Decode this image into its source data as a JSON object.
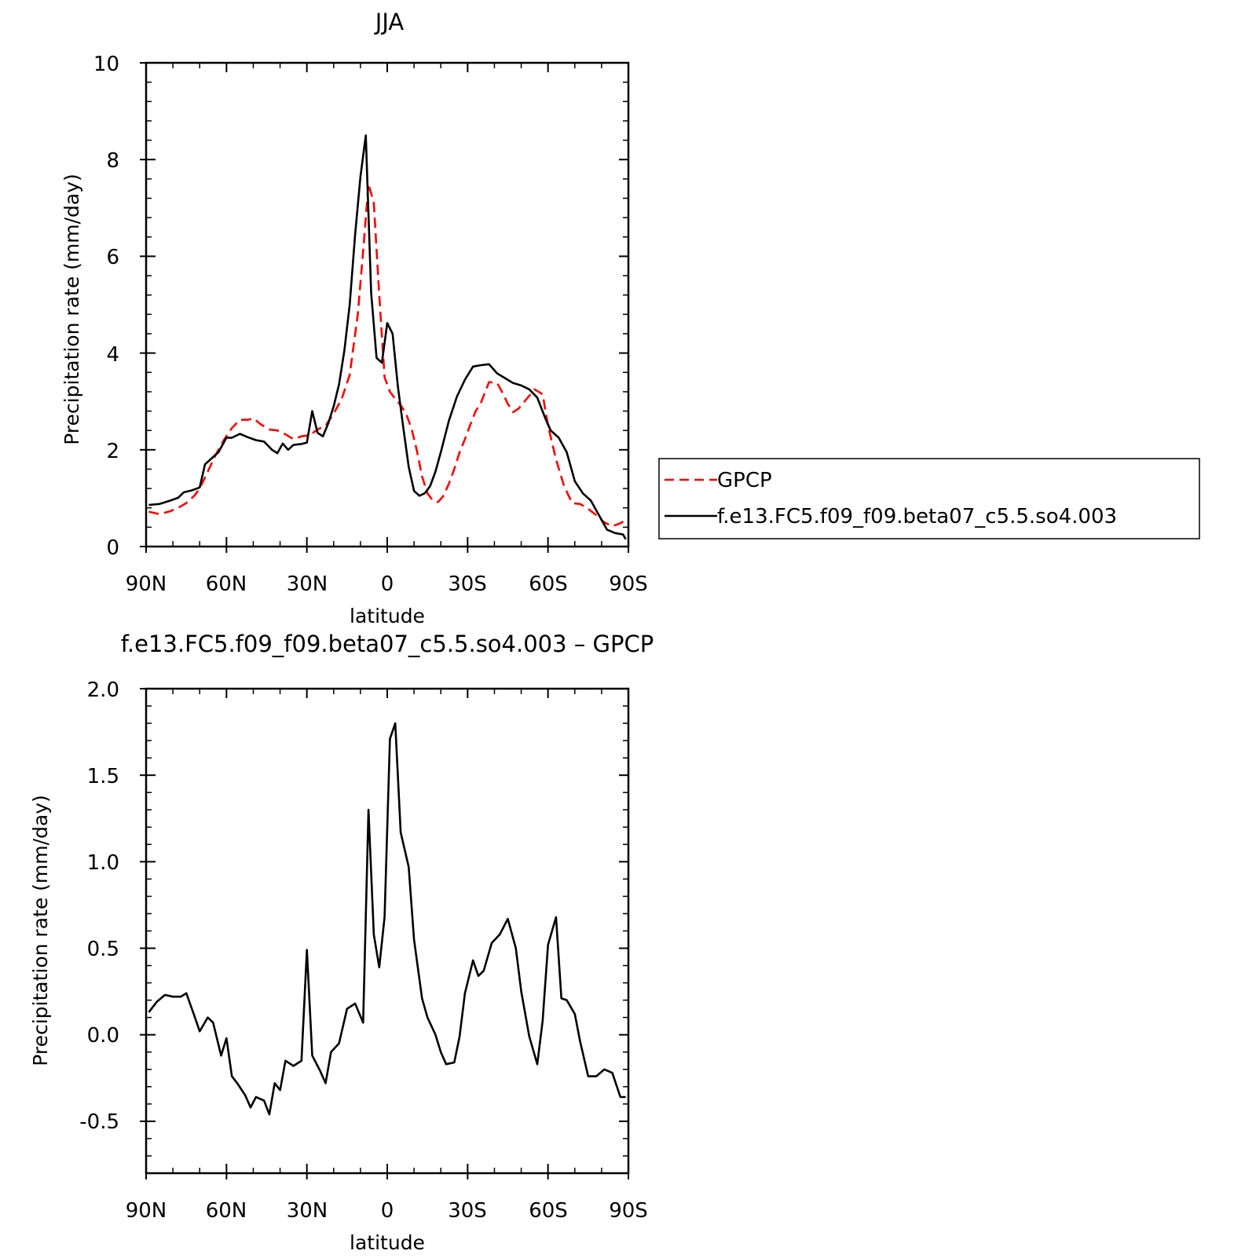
{
  "figure": {
    "panels": [
      {
        "title": "JJA",
        "xlabel": "latitude",
        "ylabel": "Precipitation rate (mm/day)",
        "x_ticks": [
          "90N",
          "60N",
          "30N",
          "0",
          "30S",
          "60S",
          "90S"
        ],
        "y_ticks": [
          "0",
          "2",
          "4",
          "6",
          "8",
          "10"
        ]
      },
      {
        "title": "f.e13.FC5.f09_f09.beta07_c5.5.so4.003 – GPCP",
        "xlabel": "latitude",
        "ylabel": "Precipitation rate (mm/day)",
        "x_ticks": [
          "90N",
          "60N",
          "30N",
          "0",
          "30S",
          "60S",
          "90S"
        ],
        "y_ticks": [
          "-0.5",
          "0.0",
          "0.5",
          "1.0",
          "1.5",
          "2.0"
        ]
      }
    ],
    "legend": {
      "items": [
        {
          "label": "GPCP",
          "color": "#ff0000",
          "style": "dashed"
        },
        {
          "label": "f.e13.FC5.f09_f09.beta07_c5.5.so4.003",
          "color": "#000000",
          "style": "solid"
        }
      ]
    }
  },
  "chart_data": [
    {
      "type": "line",
      "title": "JJA",
      "xlabel": "latitude",
      "ylabel": "Precipitation rate (mm/day)",
      "xlim": [
        90,
        -90
      ],
      "ylim": [
        0,
        10
      ],
      "grid": false,
      "legend_position": "right",
      "series": [
        {
          "name": "GPCP",
          "color": "#ff0000",
          "style": "dashed",
          "x": [
            89,
            85,
            81,
            78,
            75,
            72,
            70,
            67,
            64,
            61,
            58,
            55,
            52,
            50,
            47,
            44,
            41,
            38,
            35,
            32,
            29,
            26,
            23,
            20,
            17,
            14,
            11,
            9,
            7,
            5,
            3,
            1,
            -1,
            -3,
            -5,
            -7,
            -9,
            -11,
            -13,
            -15,
            -17,
            -19,
            -21,
            -23,
            -25,
            -27,
            -29,
            -31,
            -33,
            -35,
            -38,
            -41,
            -43,
            -45,
            -47,
            -49,
            -52,
            -55,
            -58,
            -60,
            -63,
            -66,
            -69,
            -72,
            -75,
            -78,
            -81,
            -84,
            -87,
            -89
          ],
          "values": [
            0.72,
            0.67,
            0.73,
            0.8,
            0.9,
            1.05,
            1.2,
            1.55,
            1.9,
            2.2,
            2.45,
            2.62,
            2.62,
            2.65,
            2.52,
            2.42,
            2.4,
            2.32,
            2.22,
            2.28,
            2.3,
            2.42,
            2.5,
            2.75,
            3.05,
            3.55,
            4.8,
            6.1,
            7.5,
            7.1,
            5.2,
            3.5,
            3.2,
            3.05,
            2.92,
            2.75,
            2.45,
            2.0,
            1.45,
            1.1,
            0.95,
            0.92,
            1.05,
            1.3,
            1.6,
            1.95,
            2.22,
            2.52,
            2.8,
            2.98,
            3.4,
            3.38,
            3.18,
            2.95,
            2.78,
            2.85,
            3.05,
            3.25,
            3.15,
            2.5,
            1.8,
            1.25,
            0.9,
            0.88,
            0.78,
            0.65,
            0.5,
            0.42,
            0.48,
            0.55
          ]
        },
        {
          "name": "f.e13.FC5.f09_f09.beta07_c5.5.so4.003",
          "color": "#000000",
          "style": "solid",
          "x": [
            89,
            85,
            81,
            78,
            76,
            73,
            70,
            68,
            65,
            63,
            60,
            58,
            55,
            52,
            49,
            46,
            43,
            41,
            39,
            37,
            35,
            32,
            30,
            28,
            26,
            24,
            22,
            20,
            18,
            16,
            14,
            12,
            10,
            8,
            6,
            4,
            2,
            0,
            -2,
            -4,
            -6,
            -8,
            -10,
            -12,
            -14,
            -16,
            -18,
            -20,
            -23,
            -26,
            -29,
            -32,
            -35,
            -38,
            -41,
            -44,
            -47,
            -50,
            -53,
            -56,
            -59,
            -61,
            -64,
            -67,
            -70,
            -73,
            -76,
            -79,
            -82,
            -85,
            -88,
            -89
          ],
          "values": [
            0.86,
            0.88,
            0.95,
            1.01,
            1.12,
            1.16,
            1.22,
            1.7,
            1.85,
            1.95,
            2.25,
            2.25,
            2.33,
            2.26,
            2.2,
            2.17,
            2.0,
            1.93,
            2.13,
            2.0,
            2.1,
            2.12,
            2.15,
            2.8,
            2.35,
            2.28,
            2.55,
            2.9,
            3.35,
            4.05,
            5.0,
            6.45,
            7.65,
            8.5,
            5.25,
            3.9,
            3.8,
            4.62,
            4.4,
            3.3,
            2.45,
            1.65,
            1.15,
            1.05,
            1.1,
            1.25,
            1.55,
            1.95,
            2.6,
            3.1,
            3.45,
            3.72,
            3.75,
            3.77,
            3.58,
            3.48,
            3.38,
            3.33,
            3.25,
            3.08,
            2.65,
            2.4,
            2.25,
            1.95,
            1.35,
            1.1,
            0.95,
            0.65,
            0.35,
            0.28,
            0.25,
            0.15
          ]
        }
      ]
    },
    {
      "type": "line",
      "title": "f.e13.FC5.f09_f09.beta07_c5.5.so4.003 – GPCP",
      "xlabel": "latitude",
      "ylabel": "Precipitation rate (mm/day)",
      "xlim": [
        90,
        -90
      ],
      "ylim": [
        -0.8,
        2.0
      ],
      "grid": false,
      "series": [
        {
          "color": "#000000",
          "style": "solid",
          "x": [
            89,
            86,
            83,
            80,
            77,
            75,
            72,
            70,
            67,
            65,
            62,
            60,
            58,
            56,
            53,
            51,
            49,
            46,
            44,
            42,
            40,
            38,
            35,
            32,
            30,
            28,
            25,
            23,
            21,
            18,
            15,
            12,
            9,
            7,
            5,
            3,
            1,
            -1,
            -3,
            -5,
            -8,
            -10,
            -13,
            -15,
            -18,
            -20,
            -22,
            -25,
            -27,
            -29,
            -32,
            -34,
            -36,
            -39,
            -42,
            -45,
            -48,
            -50,
            -53,
            -56,
            -58,
            -60,
            -63,
            -65,
            -67,
            -70,
            -72,
            -75,
            -78,
            -81,
            -84,
            -87,
            -89
          ],
          "values": [
            0.13,
            0.19,
            0.23,
            0.22,
            0.22,
            0.24,
            0.11,
            0.02,
            0.1,
            0.07,
            -0.12,
            -0.02,
            -0.24,
            -0.28,
            -0.35,
            -0.42,
            -0.36,
            -0.38,
            -0.46,
            -0.28,
            -0.32,
            -0.15,
            -0.18,
            -0.15,
            0.49,
            -0.12,
            -0.21,
            -0.28,
            -0.1,
            -0.05,
            0.15,
            0.18,
            0.07,
            1.3,
            0.58,
            0.39,
            0.68,
            1.71,
            1.8,
            1.17,
            0.97,
            0.55,
            0.21,
            0.1,
            0.0,
            -0.1,
            -0.17,
            -0.16,
            -0.01,
            0.24,
            0.43,
            0.34,
            0.37,
            0.53,
            0.58,
            0.67,
            0.5,
            0.25,
            -0.01,
            -0.17,
            0.08,
            0.52,
            0.68,
            0.21,
            0.2,
            0.12,
            -0.04,
            -0.24,
            -0.24,
            -0.2,
            -0.22,
            -0.36,
            -0.36
          ]
        }
      ]
    }
  ]
}
